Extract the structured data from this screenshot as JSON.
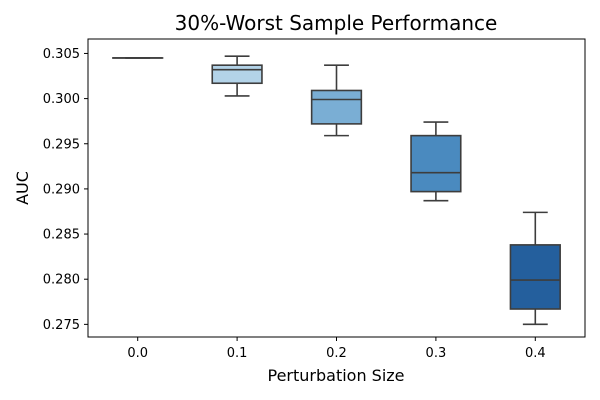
{
  "chart_data": {
    "type": "box",
    "title": "30%-Worst Sample Performance",
    "xlabel": "Perturbation Size",
    "ylabel": "AUC",
    "categories": [
      "0.0",
      "0.1",
      "0.2",
      "0.3",
      "0.4"
    ],
    "yticks": [
      "0.275",
      "0.280",
      "0.285",
      "0.290",
      "0.295",
      "0.300",
      "0.305"
    ],
    "ylim": [
      0.2736,
      0.3066
    ],
    "grid": false,
    "boxes": [
      {
        "category": "0.0",
        "whisker_low": 0.3045,
        "q1": 0.3045,
        "median": 0.3045,
        "q3": 0.3045,
        "whisker_high": 0.3045,
        "color": "#f7fbff"
      },
      {
        "category": "0.1",
        "whisker_low": 0.3003,
        "q1": 0.3017,
        "median": 0.3032,
        "q3": 0.3037,
        "whisker_high": 0.3047,
        "color": "#b3d3e8"
      },
      {
        "category": "0.2",
        "whisker_low": 0.2959,
        "q1": 0.2972,
        "median": 0.2999,
        "q3": 0.3009,
        "whisker_high": 0.3037,
        "color": "#7aaed4"
      },
      {
        "category": "0.3",
        "whisker_low": 0.2887,
        "q1": 0.2897,
        "median": 0.2918,
        "q3": 0.2959,
        "whisker_high": 0.2974,
        "color": "#4a8abf"
      },
      {
        "category": "0.4",
        "whisker_low": 0.275,
        "q1": 0.2767,
        "median": 0.2799,
        "q3": 0.2838,
        "whisker_high": 0.2874,
        "color": "#245f9d"
      }
    ]
  }
}
